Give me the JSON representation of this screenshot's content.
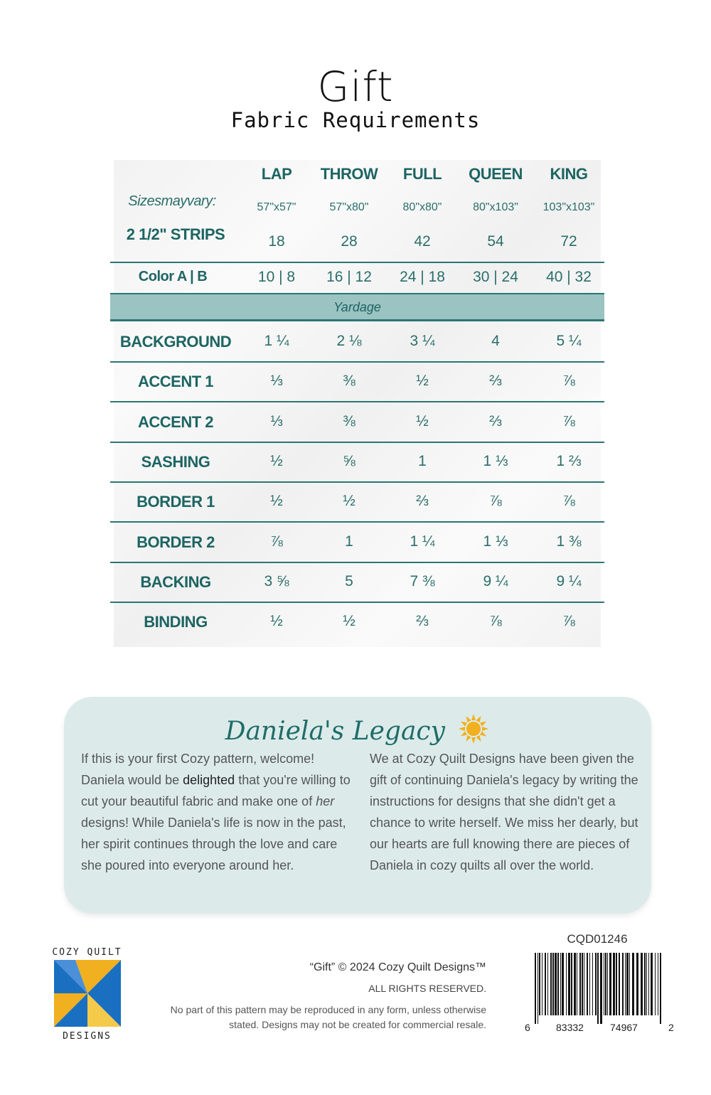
{
  "title": "Gift",
  "subtitle": "Fabric Requirements",
  "table": {
    "sizes_label": "Sizesmayvary:",
    "columns": [
      "LAP",
      "THROW",
      "FULL",
      "QUEEN",
      "KING"
    ],
    "sizes": [
      "57\"x57\"",
      "57\"x80\"",
      "80\"x80\"",
      "80\"x103\"",
      "103\"x103\""
    ],
    "strips_label": "2 1/2\" STRIPS",
    "strips": [
      "18",
      "28",
      "42",
      "54",
      "72"
    ],
    "color_label": "Color A | B",
    "color": [
      "10 | 8",
      "16 | 12",
      "24 | 18",
      "30 | 24",
      "40 | 32"
    ],
    "yardage_label": "Yardage",
    "rows": [
      {
        "label": "BACKGROUND",
        "values": [
          "1 ¼",
          "2 ⅛",
          "3 ¼",
          "4",
          "5 ¼"
        ]
      },
      {
        "label": "ACCENT 1",
        "values": [
          "⅓",
          "⅜",
          "½",
          "⅔",
          "⅞"
        ]
      },
      {
        "label": "ACCENT 2",
        "values": [
          "⅓",
          "⅜",
          "½",
          "⅔",
          "⅞"
        ]
      },
      {
        "label": "SASHING",
        "values": [
          "½",
          "⅝",
          "1",
          "1 ⅓",
          "1 ⅔"
        ]
      },
      {
        "label": "BORDER 1",
        "values": [
          "½",
          "½",
          "⅔",
          "⅞",
          "⅞"
        ]
      },
      {
        "label": "BORDER 2",
        "values": [
          "⅞",
          "1",
          "1 ¼",
          "1 ⅓",
          "1 ⅜"
        ]
      },
      {
        "label": "BACKING",
        "values": [
          "3 ⅝",
          "5",
          "7 ⅜",
          "9 ¼",
          "9 ¼"
        ]
      },
      {
        "label": "BINDING",
        "values": [
          "½",
          "½",
          "⅔",
          "⅞",
          "⅞"
        ]
      }
    ]
  },
  "legacy": {
    "title": "Daniela's Legacy",
    "icon": "sun-icon",
    "left_parts": [
      "If this is your first Cozy pattern, welcome! Daniela would be ",
      "delighted",
      " that you're willing to cut your beautiful fabric and make one of ",
      "her",
      " designs! While Daniela's life is now in the past, her spirit continues through the love and care she poured into everyone around her."
    ],
    "right": "We at Cozy Quilt Designs have been given the gift of continuing Daniela's legacy by writing the instructions for designs that she didn't get a chance to write herself. We miss her dearly, but our hearts are full knowing there are pieces of Daniela in cozy quilts all over the world."
  },
  "footer": {
    "logo_top": "COZY QUILT",
    "logo_bottom": "DESIGNS",
    "copyright": "“Gift” © 2024 Cozy Quilt Designs™",
    "rights": "ALL RIGHTS RESERVED.",
    "notice": "No part of this pattern may be reproduced in any form, unless otherwise stated. Designs may not be created for commercial resale.",
    "sku": "CQD01246",
    "barcode_digits": [
      "6",
      "83332",
      "74967",
      "2"
    ]
  },
  "colors": {
    "teal": "#1d6562",
    "band": "#9ac3c1",
    "legacy_bg": "#dcebea",
    "logo_blue": "#1a6fc0",
    "logo_yellow": "#f0b020"
  }
}
